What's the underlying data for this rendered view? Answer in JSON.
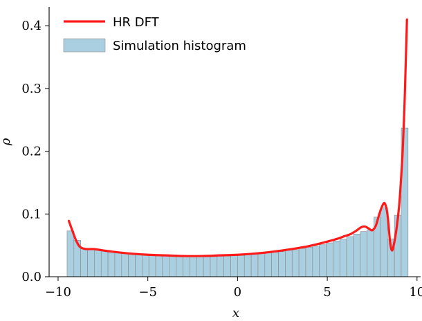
{
  "chart_data": {
    "type": "bar",
    "xlabel": "x",
    "ylabel": "ρ",
    "xlim": [
      -10.5,
      10.2
    ],
    "ylim": [
      0,
      0.43
    ],
    "xticks": [
      {
        "value": -10,
        "label": "−10"
      },
      {
        "value": -5,
        "label": "−5"
      },
      {
        "value": 0,
        "label": "0"
      },
      {
        "value": 5,
        "label": "5"
      },
      {
        "value": 10,
        "label": "10"
      }
    ],
    "yticks": [
      {
        "value": 0.0,
        "label": "0.0"
      },
      {
        "value": 0.1,
        "label": "0.1"
      },
      {
        "value": 0.2,
        "label": "0.2"
      },
      {
        "value": 0.3,
        "label": "0.3"
      },
      {
        "value": 0.4,
        "label": "0.4"
      }
    ],
    "legend_position": "top-left",
    "legend": [
      {
        "label": "HR DFT",
        "kind": "line",
        "color": "#ff1a1a"
      },
      {
        "label": "Simulation histogram",
        "kind": "patch",
        "color": "#a9cfe0"
      }
    ],
    "histogram": {
      "name": "Simulation histogram",
      "color": "#a9cfe0",
      "edge_color": "#8a8a8a",
      "bin_edges_start": -9.5,
      "bin_width": 0.38,
      "values": [
        0.073,
        0.058,
        0.045,
        0.043,
        0.042,
        0.041,
        0.04,
        0.039,
        0.038,
        0.037,
        0.036,
        0.035,
        0.034,
        0.034,
        0.033,
        0.033,
        0.032,
        0.032,
        0.032,
        0.032,
        0.032,
        0.032,
        0.033,
        0.033,
        0.034,
        0.034,
        0.035,
        0.036,
        0.037,
        0.038,
        0.039,
        0.04,
        0.042,
        0.043,
        0.045,
        0.047,
        0.049,
        0.051,
        0.054,
        0.057,
        0.06,
        0.064,
        0.068,
        0.072,
        0.075,
        0.095,
        0.11,
        0.06,
        0.098,
        0.237
      ]
    },
    "series": [
      {
        "name": "HR DFT",
        "color": "#ff1a1a",
        "x": [
          -9.4,
          -9.2,
          -9.0,
          -8.8,
          -8.6,
          -8.4,
          -8.0,
          -7.5,
          -7.0,
          -6.0,
          -5.0,
          -4.0,
          -3.0,
          -2.0,
          -1.0,
          0.0,
          1.0,
          2.0,
          3.0,
          4.0,
          5.0,
          5.5,
          6.0,
          6.3,
          6.6,
          6.9,
          7.1,
          7.3,
          7.5,
          7.7,
          7.9,
          8.05,
          8.2,
          8.35,
          8.5,
          8.6,
          8.7,
          8.85,
          9.0,
          9.1,
          9.2,
          9.3,
          9.38,
          9.44
        ],
        "y": [
          0.089,
          0.073,
          0.058,
          0.048,
          0.045,
          0.044,
          0.044,
          0.042,
          0.04,
          0.037,
          0.035,
          0.034,
          0.033,
          0.033,
          0.034,
          0.035,
          0.037,
          0.04,
          0.044,
          0.049,
          0.056,
          0.06,
          0.065,
          0.068,
          0.073,
          0.079,
          0.08,
          0.077,
          0.074,
          0.081,
          0.1,
          0.112,
          0.117,
          0.1,
          0.055,
          0.042,
          0.05,
          0.075,
          0.112,
          0.152,
          0.2,
          0.272,
          0.35,
          0.41
        ]
      }
    ]
  }
}
